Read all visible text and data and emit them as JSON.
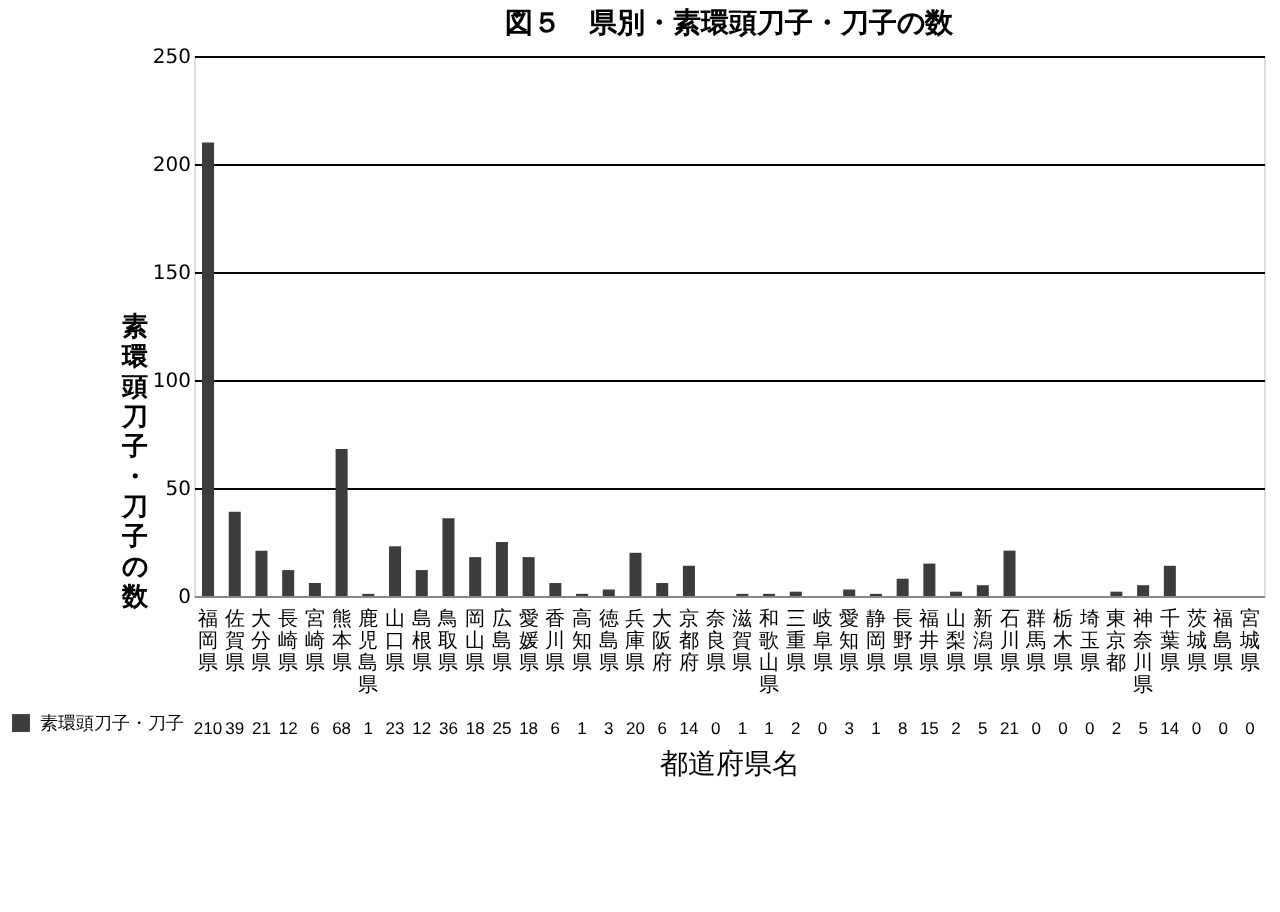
{
  "chart_data": {
    "type": "bar",
    "title": "図５　県別・素環頭刀子・刀子の数",
    "xlabel": "都道府県名",
    "ylabel": "素環頭刀子・刀子の数",
    "categories": [
      "福岡県",
      "佐賀県",
      "大分県",
      "長崎県",
      "宮崎県",
      "熊本県",
      "鹿児島県",
      "山口県",
      "島根県",
      "鳥取県",
      "岡山県",
      "広島県",
      "愛媛県",
      "香川県",
      "高知県",
      "徳島県",
      "兵庫県",
      "大阪府",
      "京都府",
      "奈良県",
      "滋賀県",
      "和歌山県",
      "三重県",
      "岐阜県",
      "愛知県",
      "静岡県",
      "長野県",
      "福井県",
      "山梨県",
      "新潟県",
      "石川県",
      "群馬県",
      "栃木県",
      "埼玉県",
      "東京都",
      "神奈川県",
      "千葉県",
      "茨城県",
      "福島県",
      "宮城県"
    ],
    "series": [
      {
        "name": "素環頭刀子・刀子",
        "color": "#3c3c3c",
        "values": [
          210,
          39,
          21,
          12,
          6,
          68,
          1,
          23,
          12,
          36,
          18,
          25,
          18,
          6,
          1,
          3,
          20,
          6,
          14,
          0,
          1,
          1,
          2,
          0,
          3,
          1,
          8,
          15,
          2,
          5,
          21,
          0,
          0,
          0,
          2,
          5,
          14,
          0,
          0,
          0
        ]
      }
    ],
    "ylim": [
      0,
      250
    ],
    "yticks": [
      0,
      50,
      100,
      150,
      200,
      250
    ],
    "grid": "y",
    "data_labels": true,
    "legend": "bottom left"
  }
}
